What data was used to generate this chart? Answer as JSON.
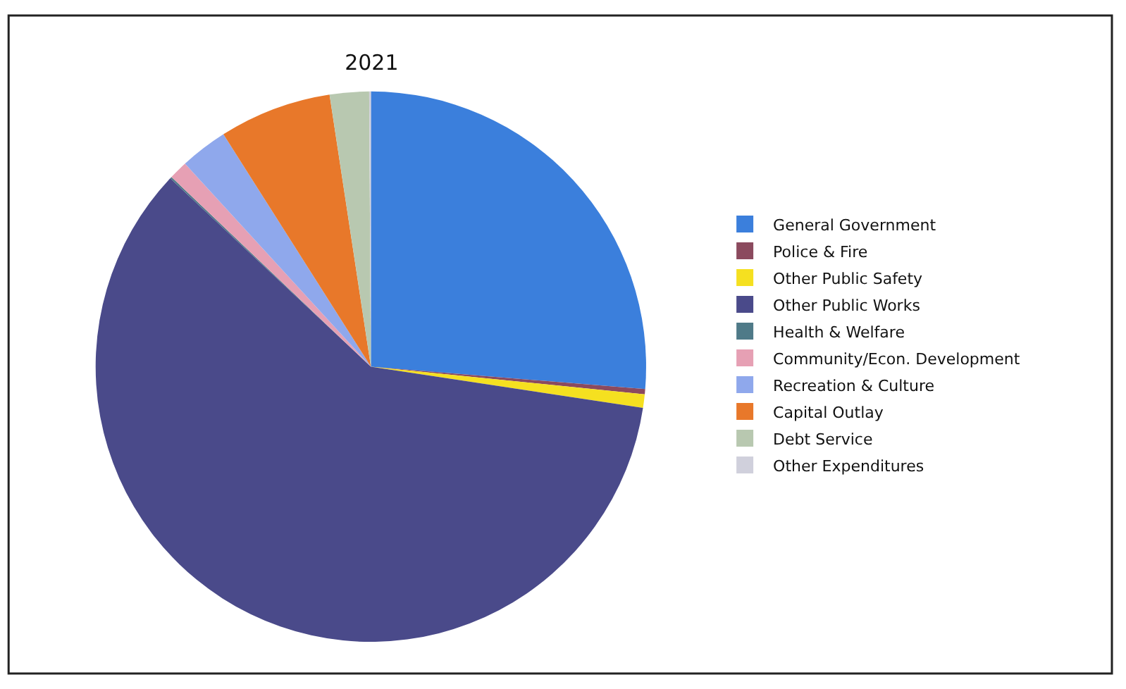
{
  "chart_data": {
    "type": "pie",
    "title": "2021",
    "categories": [
      "General Government",
      "Police & Fire",
      "Other Public Safety",
      "Other Public Works",
      "Health & Welfare",
      "Community/Econ. Development",
      "Recreation & Culture",
      "Capital Outlay",
      "Debt Service",
      "Other Expenditures"
    ],
    "values": [
      26.3,
      0.3,
      0.8,
      59.6,
      0.1,
      1.1,
      2.8,
      6.6,
      2.3,
      0.1
    ],
    "colors": [
      "#3b7fdc",
      "#8b4a5e",
      "#f5e020",
      "#4a4a8a",
      "#4f7a88",
      "#e6a0b4",
      "#8fa8ec",
      "#e8782a",
      "#b8c8b0",
      "#d0d0dc"
    ],
    "legend": "right"
  }
}
